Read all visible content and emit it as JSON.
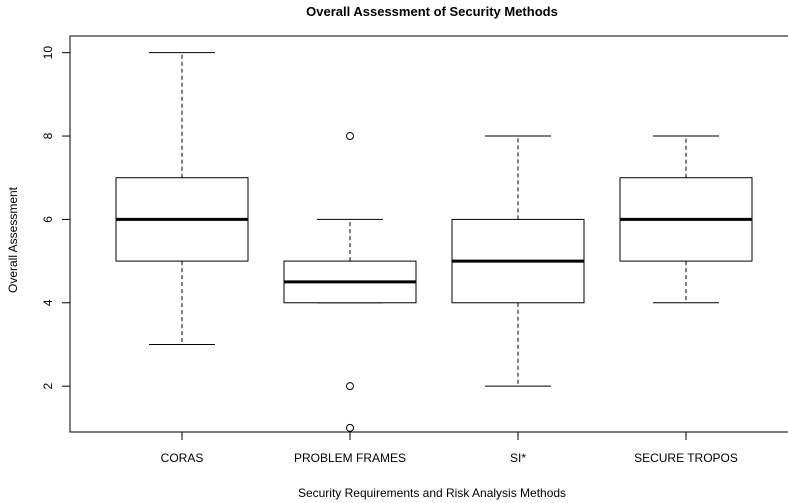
{
  "chart_data": {
    "type": "boxplot",
    "title": "Overall Assessment of Security Methods",
    "xlabel": "Security Requirements and Risk Analysis Methods",
    "ylabel": "Overall Assessment",
    "ylim": [
      0.9,
      10.4
    ],
    "yticks": [
      2,
      4,
      6,
      8,
      10
    ],
    "categories": [
      "CORAS",
      "PROBLEM FRAMES",
      "SI*",
      "SECURE TROPOS"
    ],
    "boxes": [
      {
        "whisker_low": 3,
        "q1": 5,
        "median": 6,
        "q3": 7,
        "whisker_high": 10,
        "outliers": []
      },
      {
        "whisker_low": 4,
        "q1": 4,
        "median": 4.5,
        "q3": 5,
        "whisker_high": 6,
        "outliers": [
          8,
          2,
          1
        ]
      },
      {
        "whisker_low": 2,
        "q1": 4,
        "median": 5,
        "q3": 6,
        "whisker_high": 8,
        "outliers": []
      },
      {
        "whisker_low": 4,
        "q1": 5,
        "median": 6,
        "q3": 7,
        "whisker_high": 8,
        "outliers": []
      }
    ]
  }
}
